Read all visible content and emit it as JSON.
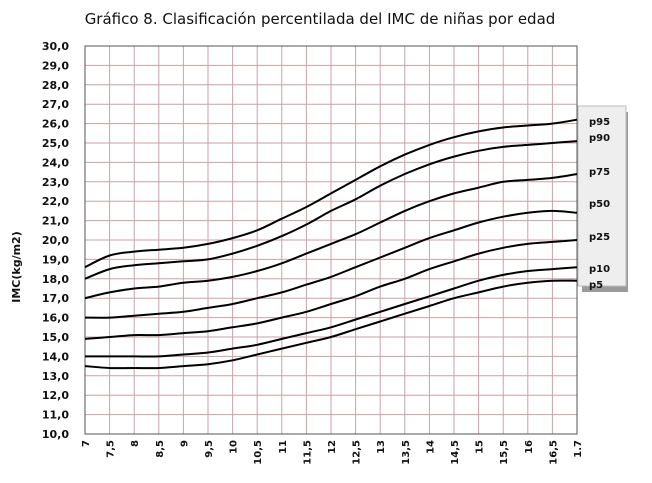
{
  "chart_data": {
    "type": "line",
    "title": "Gráfico 8. Clasificación percentilada del IMC de niñas por edad",
    "ylabel": "IMC(kg/m2)",
    "xlabel": "",
    "ylim": [
      10,
      30
    ],
    "xlim": [
      7,
      17
    ],
    "grid": true,
    "legend_placement": "right",
    "y_ticks": [
      "10,0",
      "11,0",
      "12,0",
      "13,0",
      "14,0",
      "15,0",
      "16,0",
      "17,0",
      "18,0",
      "19,0",
      "20,0",
      "21,0",
      "22,0",
      "23,0",
      "24,0",
      "25,0",
      "26,0",
      "27,0",
      "28,0",
      "29,0",
      "30,0"
    ],
    "x_ticks": [
      "7",
      "7,5",
      "8",
      "8,5",
      "9",
      "9,5",
      "10",
      "10,5",
      "11",
      "11,5",
      "12",
      "12,5",
      "13",
      "13,5",
      "14",
      "14,5",
      "15",
      "15,5",
      "16",
      "16,5",
      "1.7"
    ],
    "x": [
      7,
      7.5,
      8,
      8.5,
      9,
      9.5,
      10,
      10.5,
      11,
      11.5,
      12,
      12.5,
      13,
      13.5,
      14,
      14.5,
      15,
      15.5,
      16,
      16.5,
      17
    ],
    "series": [
      {
        "name": "p95",
        "values": [
          18.6,
          19.2,
          19.4,
          19.5,
          19.6,
          19.8,
          20.1,
          20.5,
          21.1,
          21.7,
          22.4,
          23.1,
          23.8,
          24.4,
          24.9,
          25.3,
          25.6,
          25.8,
          25.9,
          26.0,
          26.2
        ]
      },
      {
        "name": "p90",
        "values": [
          18.0,
          18.5,
          18.7,
          18.8,
          18.9,
          19.0,
          19.3,
          19.7,
          20.2,
          20.8,
          21.5,
          22.1,
          22.8,
          23.4,
          23.9,
          24.3,
          24.6,
          24.8,
          24.9,
          25.0,
          25.1
        ]
      },
      {
        "name": "p75",
        "values": [
          17.0,
          17.3,
          17.5,
          17.6,
          17.8,
          17.9,
          18.1,
          18.4,
          18.8,
          19.3,
          19.8,
          20.3,
          20.9,
          21.5,
          22.0,
          22.4,
          22.7,
          23.0,
          23.1,
          23.2,
          23.4
        ]
      },
      {
        "name": "p50",
        "values": [
          16.0,
          16.0,
          16.1,
          16.2,
          16.3,
          16.5,
          16.7,
          17.0,
          17.3,
          17.7,
          18.1,
          18.6,
          19.1,
          19.6,
          20.1,
          20.5,
          20.9,
          21.2,
          21.4,
          21.5,
          21.4
        ]
      },
      {
        "name": "p25",
        "values": [
          14.9,
          15.0,
          15.1,
          15.1,
          15.2,
          15.3,
          15.5,
          15.7,
          16.0,
          16.3,
          16.7,
          17.1,
          17.6,
          18.0,
          18.5,
          18.9,
          19.3,
          19.6,
          19.8,
          19.9,
          20.0
        ]
      },
      {
        "name": "p10",
        "values": [
          14.0,
          14.0,
          14.0,
          14.0,
          14.1,
          14.2,
          14.4,
          14.6,
          14.9,
          15.2,
          15.5,
          15.9,
          16.3,
          16.7,
          17.1,
          17.5,
          17.9,
          18.2,
          18.4,
          18.5,
          18.6
        ]
      },
      {
        "name": "p5",
        "values": [
          13.5,
          13.4,
          13.4,
          13.4,
          13.5,
          13.6,
          13.8,
          14.1,
          14.4,
          14.7,
          15.0,
          15.4,
          15.8,
          16.2,
          16.6,
          17.0,
          17.3,
          17.6,
          17.8,
          17.9,
          17.9
        ]
      }
    ],
    "colors": {
      "line": "#000000",
      "grid": "#c8a2a8",
      "frame": "#555555",
      "legend_bg": "#eeeeee"
    }
  }
}
